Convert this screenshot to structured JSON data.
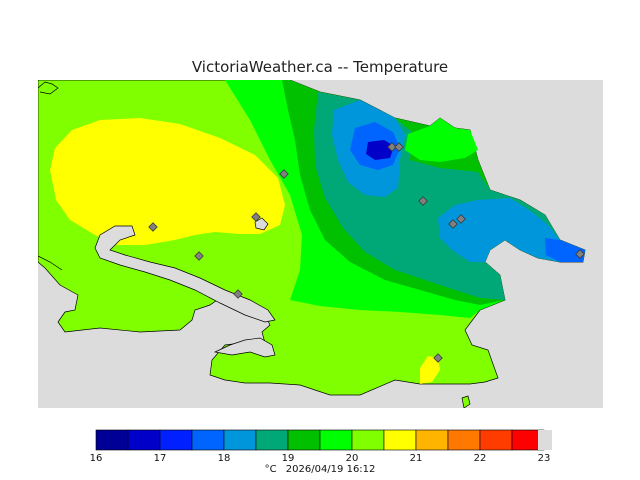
{
  "title": "VictoriaWeather.ca -- Temperature",
  "colors": {
    "water": "#dcdcdc",
    "c20_21": "#ffff00",
    "c19_20": "#7fff00",
    "c18_19": "#00ff00",
    "c17_18": "#00c000",
    "c16_17": "#00a878",
    "c15_16": "#0096dc",
    "c14_15": "#0064ff",
    "c13_14": "#0000c8",
    "station": "#808080"
  },
  "colorbar": {
    "colors": [
      "#000096",
      "#0000c8",
      "#0020ff",
      "#0064ff",
      "#0096dc",
      "#00a878",
      "#00c000",
      "#00ff00",
      "#7fff00",
      "#ffff00",
      "#ffb400",
      "#ff7800",
      "#ff3c00",
      "#ff0000"
    ],
    "ticks": [
      "16",
      "17",
      "18",
      "19",
      "20",
      "21",
      "22",
      "23"
    ],
    "min": 16,
    "max": 23
  },
  "footer": {
    "unit": "°C",
    "timestamp": "2026/04/19 16:12"
  }
}
